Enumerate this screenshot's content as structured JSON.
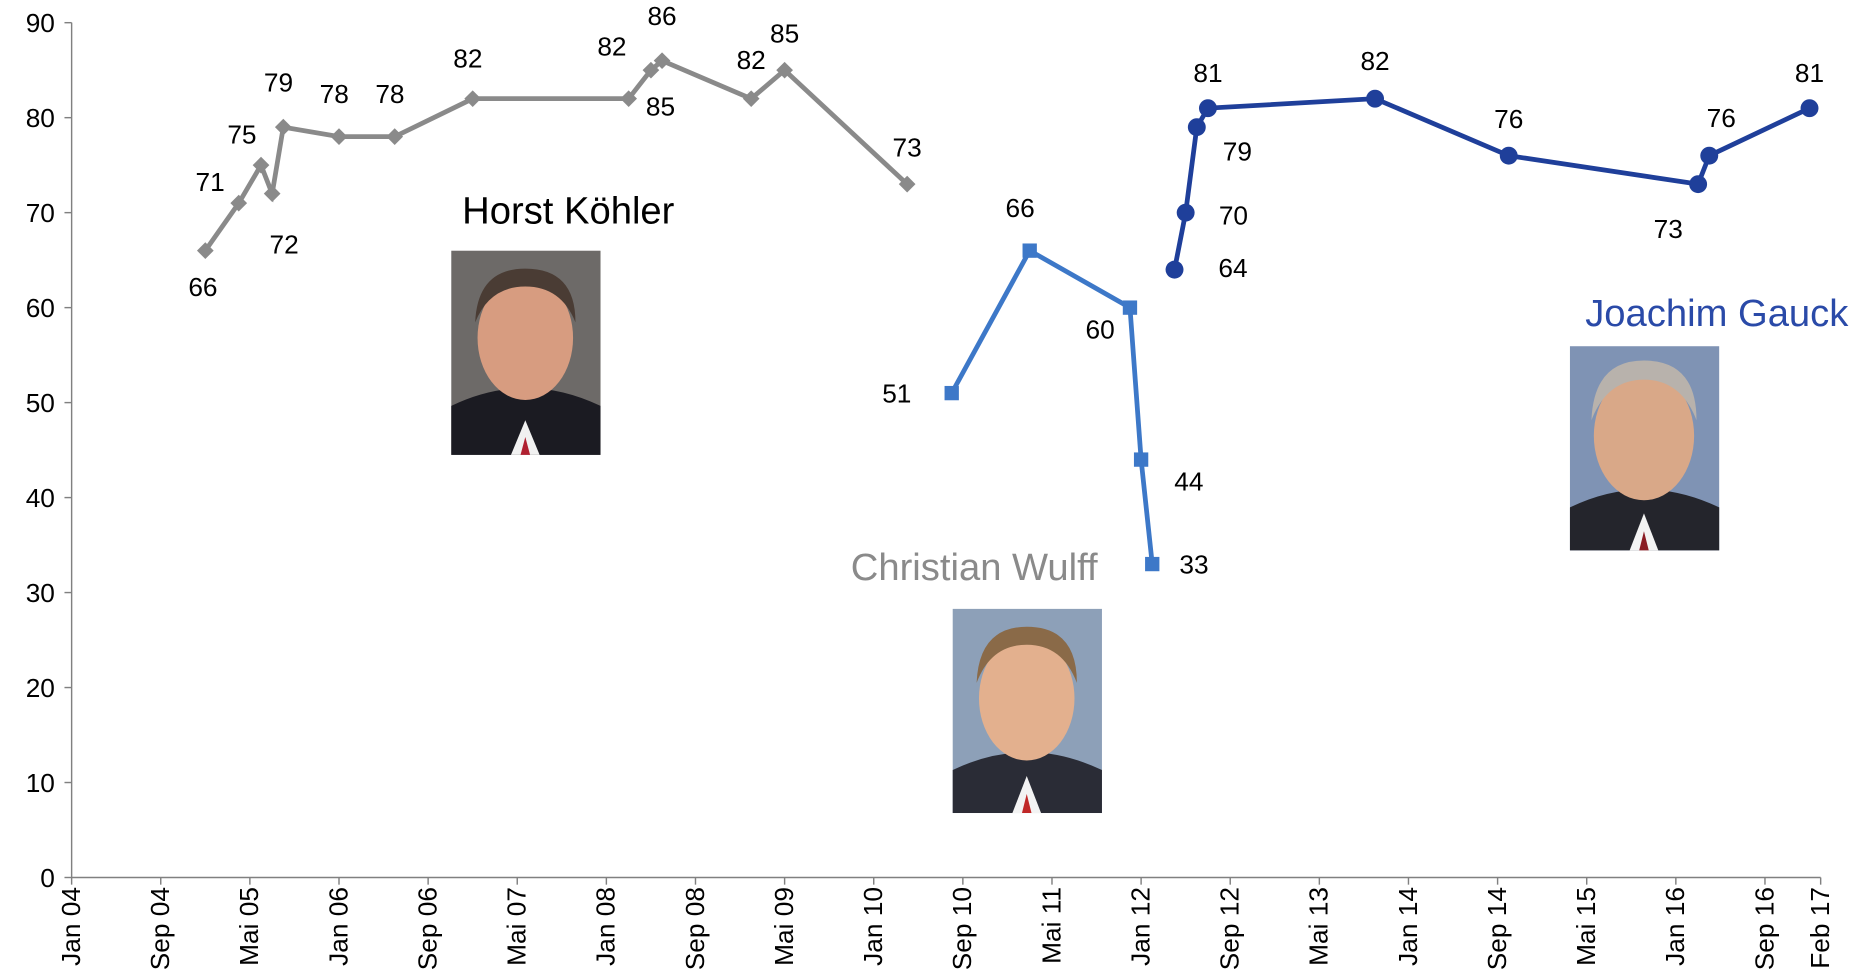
{
  "chart_data": {
    "type": "line",
    "xlim": [
      "2004-01",
      "2017-02"
    ],
    "xticks": [
      {
        "value": "2004-01",
        "label": "Jan 04"
      },
      {
        "value": "2004-09",
        "label": "Sep 04"
      },
      {
        "value": "2005-05",
        "label": "Mai 05"
      },
      {
        "value": "2006-01",
        "label": "Jan 06"
      },
      {
        "value": "2006-09",
        "label": "Sep 06"
      },
      {
        "value": "2007-05",
        "label": "Mai 07"
      },
      {
        "value": "2008-01",
        "label": "Jan 08"
      },
      {
        "value": "2008-09",
        "label": "Sep 08"
      },
      {
        "value": "2009-05",
        "label": "Mai 09"
      },
      {
        "value": "2010-01",
        "label": "Jan 10"
      },
      {
        "value": "2010-09",
        "label": "Sep 10"
      },
      {
        "value": "2011-05",
        "label": "Mai 11"
      },
      {
        "value": "2012-01",
        "label": "Jan 12"
      },
      {
        "value": "2012-09",
        "label": "Sep 12"
      },
      {
        "value": "2013-05",
        "label": "Mai 13"
      },
      {
        "value": "2014-01",
        "label": "Jan 14"
      },
      {
        "value": "2014-09",
        "label": "Sep 14"
      },
      {
        "value": "2015-05",
        "label": "Mai 15"
      },
      {
        "value": "2016-01",
        "label": "Jan 16"
      },
      {
        "value": "2016-09",
        "label": "Sep 16"
      },
      {
        "value": "2017-02",
        "label": "Feb 17"
      }
    ],
    "ylim": [
      0,
      90
    ],
    "yticks": [
      0,
      10,
      20,
      30,
      40,
      50,
      60,
      70,
      80,
      90
    ],
    "series": [
      {
        "name": "Horst Köhler",
        "color": "#8a8a8a",
        "label_color": "#000000",
        "marker": "diamond",
        "x": [
          "2005-01",
          "2005-04",
          "2005-06",
          "2005-07",
          "2005-08",
          "2006-01",
          "2006-06",
          "2007-01",
          "2008-03",
          "2008-05",
          "2008-06",
          "2009-02",
          "2009-05",
          "2010-04"
        ],
        "values": [
          66,
          71,
          75,
          72,
          79,
          78,
          78,
          82,
          82,
          85,
          86,
          82,
          85,
          73
        ]
      },
      {
        "name": "Christian Wulff",
        "color": "#3d78c8",
        "label_color": "#8a8a8a",
        "marker": "square",
        "x": [
          "2010-08",
          "2011-03",
          "2011-12",
          "2012-01",
          "2012-02"
        ],
        "values": [
          51,
          66,
          60,
          44,
          33
        ]
      },
      {
        "name": "Joachim Gauck",
        "color": "#1f3f9a",
        "label_color": "#2a4aa8",
        "marker": "circle",
        "x": [
          "2012-04",
          "2012-05",
          "2012-06",
          "2012-07",
          "2013-10",
          "2014-10",
          "2016-03",
          "2016-04",
          "2017-01"
        ],
        "values": [
          64,
          70,
          79,
          81,
          82,
          76,
          73,
          76,
          81
        ]
      }
    ]
  }
}
